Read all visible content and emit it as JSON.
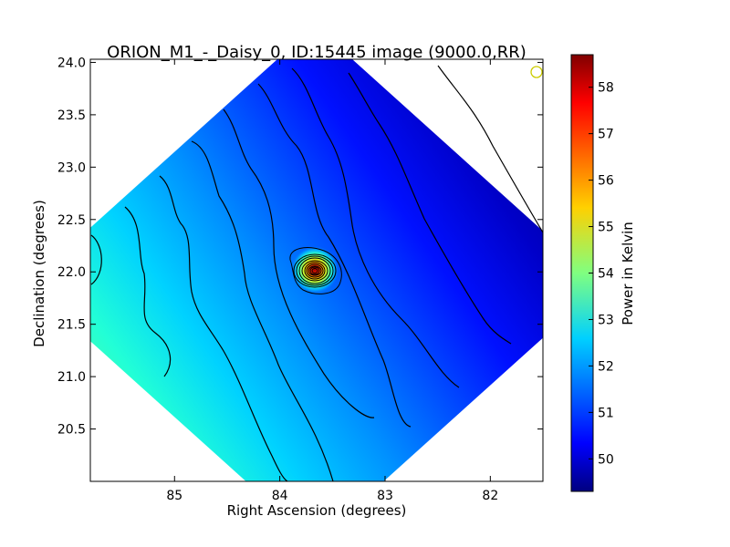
{
  "chart_data": {
    "type": "heatmap",
    "title": "ORION_M1_-_Daisy_0, ID:15445 image (9000.0,RR)",
    "xlabel": "Right Ascension (degrees)",
    "ylabel": "Declination (degrees)",
    "xlim": [
      85.8,
      81.5
    ],
    "ylim": [
      20.0,
      24.03
    ],
    "x_ticks": [
      85,
      84,
      83,
      82
    ],
    "x_tick_labels": [
      "85",
      "84",
      "83",
      "82"
    ],
    "y_ticks": [
      20.5,
      21.0,
      21.5,
      22.0,
      22.5,
      23.0,
      23.5,
      24.0
    ],
    "y_tick_labels": [
      "20.5",
      "21.0",
      "21.5",
      "22.0",
      "22.5",
      "23.0",
      "23.5",
      "24.0"
    ],
    "colorbar": {
      "label": "Power in Kelvin",
      "range": [
        49.3,
        58.7
      ],
      "ticks": [
        50,
        51,
        52,
        53,
        54,
        55,
        56,
        57,
        58
      ],
      "tick_labels": [
        "50",
        "51",
        "52",
        "53",
        "54",
        "55",
        "56",
        "57",
        "58"
      ],
      "colormap": "jet"
    },
    "map_footprint": "diamond",
    "map_center": {
      "ra": 83.7,
      "dec": 22.0
    },
    "source_peak": {
      "ra": 83.63,
      "dec": 22.02,
      "value": 58.7
    },
    "background_gradient": {
      "east_edge_value": 53.5,
      "west_edge_value": 49.4
    },
    "contours": {
      "color": "#000000",
      "background_levels": 9,
      "source_levels": 10
    },
    "beam_marker": {
      "ra": 81.55,
      "dec": 23.94,
      "color": "#cccc00"
    },
    "grid": false
  }
}
